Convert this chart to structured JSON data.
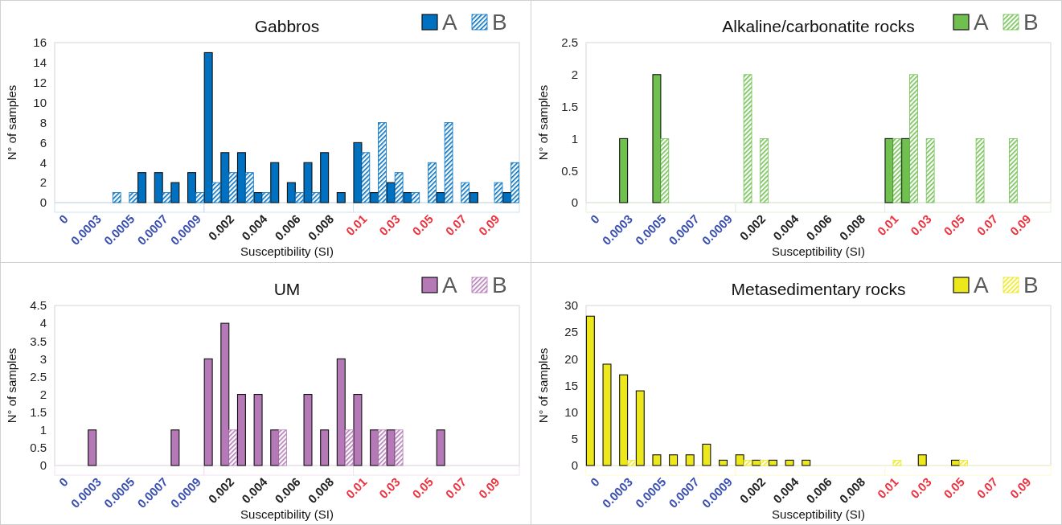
{
  "chart_data": [
    {
      "type": "bar",
      "title": "Gabbros",
      "xlabel": "Susceptibility (SI)",
      "ylabel": "N° of samples",
      "legend": "top right",
      "ylim": [
        0,
        16
      ],
      "yticks": [
        0,
        2,
        4,
        6,
        8,
        10,
        12,
        14,
        16
      ],
      "categories": [
        "0",
        null,
        "0.0003",
        null,
        "0.0005",
        null,
        "0.0007",
        null,
        "0.0009",
        null,
        "0.002",
        null,
        "0.004",
        null,
        "0.006",
        null,
        "0.008",
        null,
        "0.01",
        null,
        "0.03",
        null,
        "0.05",
        null,
        "0.07",
        null,
        "0.09",
        null
      ],
      "series": [
        {
          "name": "A",
          "color": "#0070c0",
          "values": [
            null,
            null,
            null,
            null,
            null,
            3,
            3,
            2,
            3,
            15,
            5,
            5,
            1,
            4,
            2,
            4,
            5,
            1,
            6,
            1,
            2,
            1,
            null,
            1,
            null,
            1,
            null,
            1
          ]
        },
        {
          "name": "B",
          "color": "#0070c0",
          "values": [
            null,
            null,
            null,
            1,
            1,
            null,
            1,
            null,
            1,
            2,
            3,
            3,
            1,
            null,
            1,
            1,
            null,
            null,
            5,
            8,
            3,
            1,
            4,
            8,
            2,
            null,
            2,
            4
          ]
        }
      ]
    },
    {
      "type": "bar",
      "title": "Alkaline/carbonatite rocks",
      "xlabel": "Susceptibility (SI)",
      "ylabel": "N° of samples",
      "legend": "top right",
      "ylim": [
        0,
        2.5
      ],
      "yticks": [
        0,
        0.5,
        1,
        1.5,
        2,
        2.5
      ],
      "categories": [
        "0",
        null,
        "0.0003",
        null,
        "0.0005",
        null,
        "0.0007",
        null,
        "0.0009",
        null,
        "0.002",
        null,
        "0.004",
        null,
        "0.006",
        null,
        "0.008",
        null,
        "0.01",
        null,
        "0.03",
        null,
        "0.05",
        null,
        "0.07",
        null,
        "0.09",
        null
      ],
      "series": [
        {
          "name": "A",
          "color": "#70c050",
          "values": [
            null,
            null,
            1,
            null,
            2,
            null,
            null,
            null,
            null,
            null,
            null,
            null,
            null,
            null,
            null,
            null,
            null,
            null,
            1,
            1,
            null,
            null,
            null,
            null,
            null,
            null,
            null,
            null
          ]
        },
        {
          "name": "B",
          "color": "#70c050",
          "values": [
            null,
            null,
            null,
            null,
            1,
            null,
            null,
            null,
            null,
            2,
            1,
            null,
            null,
            null,
            null,
            null,
            null,
            null,
            1,
            2,
            1,
            null,
            null,
            1,
            null,
            1,
            null,
            null
          ]
        }
      ]
    },
    {
      "type": "bar",
      "title": "UM",
      "xlabel": "Susceptibility (SI)",
      "ylabel": "N° of samples",
      "legend": "top right",
      "ylim": [
        0,
        4.5
      ],
      "yticks": [
        0,
        0.5,
        1,
        1.5,
        2,
        2.5,
        3,
        3.5,
        4,
        4.5
      ],
      "categories": [
        "0",
        null,
        "0.0003",
        null,
        "0.0005",
        null,
        "0.0007",
        null,
        "0.0009",
        null,
        "0.002",
        null,
        "0.004",
        null,
        "0.006",
        null,
        "0.008",
        null,
        "0.01",
        null,
        "0.03",
        null,
        "0.05",
        null,
        "0.07",
        null,
        "0.09",
        null
      ],
      "series": [
        {
          "name": "A",
          "color": "#b479b6",
          "values": [
            null,
            null,
            1,
            null,
            null,
            null,
            null,
            1,
            null,
            3,
            4,
            2,
            2,
            1,
            null,
            2,
            1,
            3,
            2,
            1,
            1,
            null,
            null,
            1,
            null,
            null,
            null,
            null
          ]
        },
        {
          "name": "B",
          "color": "#b479b6",
          "values": [
            null,
            null,
            null,
            null,
            null,
            null,
            null,
            null,
            null,
            null,
            1,
            null,
            null,
            1,
            null,
            null,
            null,
            1,
            null,
            1,
            1,
            null,
            null,
            null,
            null,
            null,
            null,
            null
          ]
        }
      ]
    },
    {
      "type": "bar",
      "title": "Metasedimentary rocks",
      "xlabel": "Susceptibility (SI)",
      "ylabel": "N° of samples",
      "legend": "top right",
      "ylim": [
        0,
        30
      ],
      "yticks": [
        0,
        5,
        10,
        15,
        20,
        25,
        30
      ],
      "categories": [
        "0",
        null,
        "0.0003",
        null,
        "0.0005",
        null,
        "0.0007",
        null,
        "0.0009",
        null,
        "0.002",
        null,
        "0.004",
        null,
        "0.006",
        null,
        "0.008",
        null,
        "0.01",
        null,
        "0.03",
        null,
        "0.05",
        null,
        "0.07",
        null,
        "0.09",
        null
      ],
      "series": [
        {
          "name": "A",
          "color": "#ede81c",
          "values": [
            28,
            19,
            17,
            14,
            2,
            2,
            2,
            4,
            1,
            2,
            1,
            1,
            1,
            1,
            null,
            null,
            null,
            null,
            null,
            null,
            2,
            null,
            1,
            null,
            null,
            null,
            null,
            null
          ]
        },
        {
          "name": "B",
          "color": "#ede81c",
          "values": [
            null,
            null,
            1,
            null,
            null,
            null,
            null,
            null,
            null,
            1,
            1,
            null,
            null,
            null,
            null,
            null,
            null,
            null,
            1,
            null,
            null,
            null,
            1,
            null,
            null,
            null,
            null,
            null
          ]
        }
      ]
    }
  ]
}
